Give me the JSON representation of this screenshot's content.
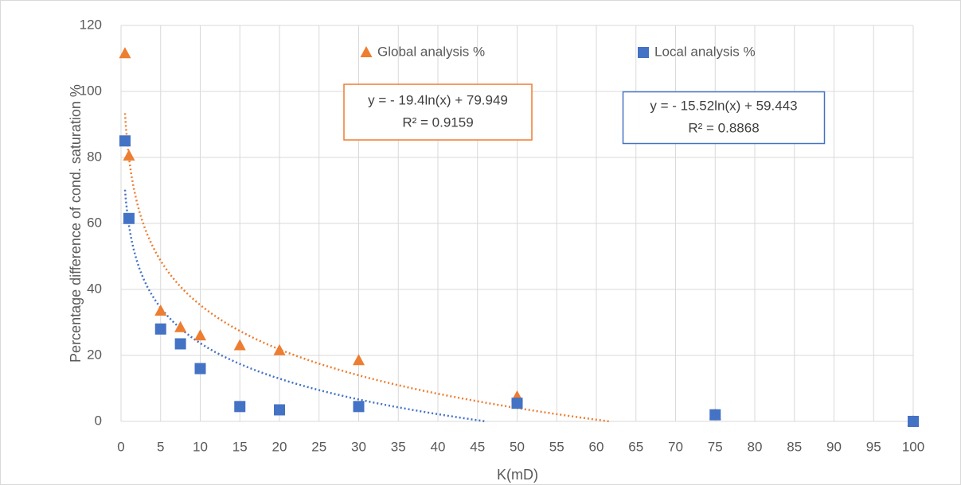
{
  "chart_data": {
    "type": "scatter",
    "x_label": "K(mD)",
    "y_label": "Percentage difference of cond. saturation %",
    "xlim": [
      0,
      100
    ],
    "xticks": [
      0,
      5,
      10,
      15,
      20,
      25,
      30,
      35,
      40,
      45,
      50,
      55,
      60,
      65,
      70,
      75,
      80,
      85,
      90,
      95,
      100
    ],
    "ylim": [
      0,
      120
    ],
    "yticks": [
      0,
      20,
      40,
      60,
      80,
      100,
      120
    ],
    "grid": true,
    "legend": "top",
    "series": [
      {
        "name": "Global analysis %",
        "color": "#ED7D31",
        "marker": "triangle",
        "x": [
          0.5,
          1,
          5,
          7.5,
          10,
          15,
          20,
          30,
          50,
          75,
          100
        ],
        "values": [
          111.5,
          80.5,
          33.5,
          28.5,
          26,
          23,
          21.5,
          18.5,
          7.5,
          2,
          0
        ],
        "trendline": {
          "type": "log",
          "a": -19.4,
          "b": 79.949,
          "equation": "y = - 19.4ln(x) + 79.949",
          "r2": "R² = 0.9159"
        }
      },
      {
        "name": "Local analysis %",
        "color": "#4472C4",
        "marker": "square",
        "x": [
          0.5,
          1,
          5,
          7.5,
          10,
          15,
          20,
          30,
          50,
          75,
          100
        ],
        "values": [
          85,
          61.5,
          28,
          23.5,
          16,
          4.5,
          3.5,
          4.5,
          5.5,
          2,
          0
        ],
        "trendline": {
          "type": "log",
          "a": -15.52,
          "b": 59.443,
          "equation": "y = - 15.52ln(x) + 59.443",
          "r2": "R² = 0.8868"
        }
      }
    ]
  }
}
